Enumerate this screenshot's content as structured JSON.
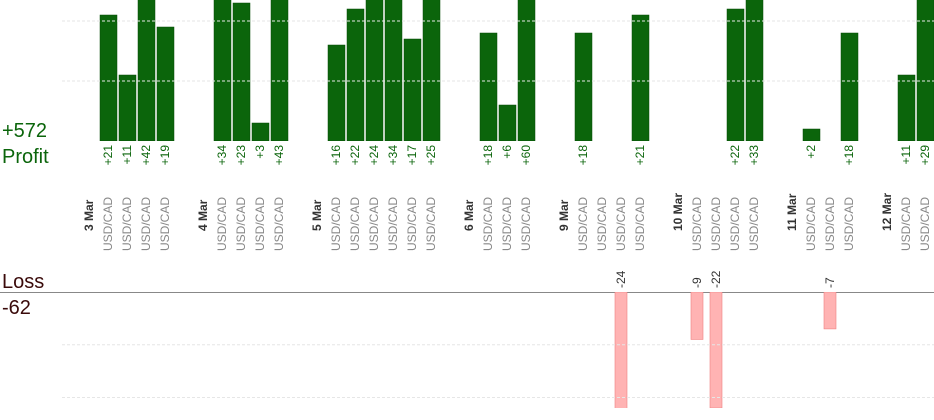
{
  "chart_data": {
    "type": "bar",
    "profit": {
      "total": "+572",
      "label": "Profit",
      "color": "#0b650b",
      "ylim": [
        0,
        23.5
      ],
      "yticks": [
        10,
        20
      ]
    },
    "loss": {
      "total": "-62",
      "label": "Loss",
      "color": "#ffb3b3",
      "ylim": [
        0,
        -22
      ],
      "yticks": [
        -10,
        -20
      ]
    },
    "groups": [
      {
        "date": "3 Mar",
        "trades": [
          {
            "pair": "USD/CAD",
            "profit": 21,
            "profit_label": "+21"
          },
          {
            "pair": "USD/CAD",
            "profit": 11,
            "profit_label": "+11"
          },
          {
            "pair": "USD/CAD",
            "profit": 42,
            "profit_label": "+42"
          },
          {
            "pair": "USD/CAD",
            "profit": 19,
            "profit_label": "+19"
          }
        ]
      },
      {
        "date": "4 Mar",
        "trades": [
          {
            "pair": "USD/CAD",
            "profit": 34,
            "profit_label": "+34"
          },
          {
            "pair": "USD/CAD",
            "profit": 23,
            "profit_label": "+23"
          },
          {
            "pair": "USD/CAD",
            "profit": 3,
            "profit_label": "+3"
          },
          {
            "pair": "USD/CAD",
            "profit": 43,
            "profit_label": "+43"
          }
        ]
      },
      {
        "date": "5 Mar",
        "trades": [
          {
            "pair": "USD/CAD",
            "profit": 16,
            "profit_label": "+16"
          },
          {
            "pair": "USD/CAD",
            "profit": 22,
            "profit_label": "+22"
          },
          {
            "pair": "USD/CAD",
            "profit": 24,
            "profit_label": "+24"
          },
          {
            "pair": "USD/CAD",
            "profit": 34,
            "profit_label": "+34"
          },
          {
            "pair": "USD/CAD",
            "profit": 17,
            "profit_label": "+17"
          },
          {
            "pair": "USD/CAD",
            "profit": 25,
            "profit_label": "+25"
          }
        ]
      },
      {
        "date": "6 Mar",
        "trades": [
          {
            "pair": "USD/CAD",
            "profit": 18,
            "profit_label": "+18"
          },
          {
            "pair": "USD/CAD",
            "profit": 6,
            "profit_label": "+6"
          },
          {
            "pair": "USD/CAD",
            "profit": 60,
            "profit_label": "+60"
          }
        ]
      },
      {
        "date": "9 Mar",
        "trades": [
          {
            "pair": "USD/CAD",
            "profit": 18,
            "profit_label": "+18"
          },
          {
            "pair": "USD/CAD"
          },
          {
            "pair": "USD/CAD",
            "loss": -24
          },
          {
            "pair": "USD/CAD",
            "profit": 21,
            "profit_label": "+21"
          }
        ]
      },
      {
        "date": "10 Mar",
        "trades": [
          {
            "pair": "USD/CAD",
            "loss": -9
          },
          {
            "pair": "USD/CAD",
            "loss": -22
          },
          {
            "pair": "USD/CAD",
            "profit": 22,
            "profit_label": "+22"
          },
          {
            "pair": "USD/CAD",
            "profit": 33,
            "profit_label": "+33"
          }
        ]
      },
      {
        "date": "11 Mar",
        "trades": [
          {
            "pair": "USD/CAD",
            "profit": 2,
            "profit_label": "+2"
          },
          {
            "pair": "USD/CAD",
            "loss": -7
          },
          {
            "pair": "USD/CAD",
            "profit": 18,
            "profit_label": "+18"
          }
        ]
      },
      {
        "date": "12 Mar",
        "trades": [
          {
            "pair": "USD/CAD",
            "profit": 11,
            "profit_label": "+11"
          },
          {
            "pair": "USD/CAD",
            "profit": 29,
            "profit_label": "+29"
          }
        ]
      }
    ]
  }
}
